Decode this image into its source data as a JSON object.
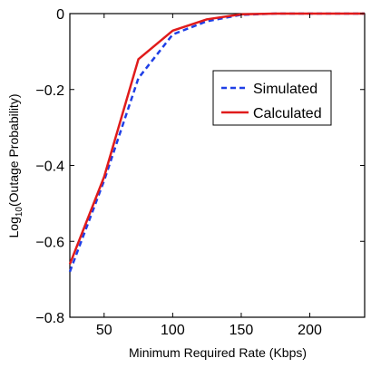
{
  "chart_data": {
    "type": "line",
    "title": "",
    "xlabel": "Minimum Required Rate (Kbps)",
    "ylabel_prefix": "Log",
    "ylabel_sub": "10",
    "ylabel_rest": "(Outage Probability)",
    "xlim": [
      25,
      240
    ],
    "ylim": [
      -0.8,
      0
    ],
    "xticks": [
      50,
      100,
      150,
      200
    ],
    "xtick_labels": [
      "50",
      "100",
      "150",
      "200"
    ],
    "yticks": [
      0,
      -0.2,
      -0.4,
      -0.6,
      -0.8
    ],
    "ytick_labels": [
      "0",
      "−0.2",
      "−0.4",
      "−0.6",
      "−0.8"
    ],
    "grid": false,
    "legend_position": "top-right",
    "series": [
      {
        "name": "Simulated",
        "color": "#1f3fe6",
        "style": "dashed",
        "x": [
          25,
          50,
          75,
          100,
          125,
          150,
          175,
          200,
          225,
          240
        ],
        "y": [
          -0.68,
          -0.44,
          -0.17,
          -0.055,
          -0.02,
          -0.003,
          0,
          0,
          0,
          0
        ]
      },
      {
        "name": "Calculated",
        "color": "#e01b1b",
        "style": "solid",
        "x": [
          25,
          50,
          75,
          100,
          125,
          150,
          175,
          200,
          225,
          240
        ],
        "y": [
          -0.66,
          -0.43,
          -0.12,
          -0.045,
          -0.015,
          -0.002,
          0,
          0,
          0,
          0
        ]
      }
    ]
  }
}
